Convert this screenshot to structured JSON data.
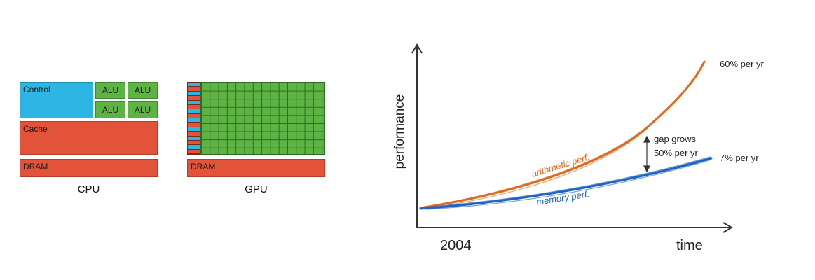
{
  "cpu": {
    "control_label": "Control",
    "alu_labels": [
      "ALU",
      "ALU",
      "ALU",
      "ALU"
    ],
    "cache_label": "Cache",
    "dram_label": "DRAM",
    "caption": "CPU"
  },
  "gpu": {
    "dram_label": "DRAM",
    "caption": "GPU"
  },
  "chart": {
    "ylabel": "performance",
    "x_start_label": "2004",
    "xlabel": "time",
    "arith_label": "arithmetic perf.",
    "arith_rate": "60% per yr",
    "mem_label": "memory perf.",
    "mem_rate": "7% per yr",
    "gap_line1": "gap grows",
    "gap_line2": "50% per yr",
    "colors": {
      "arith": "#e06a1e",
      "mem": "#1f64c4",
      "axis": "#333333"
    }
  }
}
